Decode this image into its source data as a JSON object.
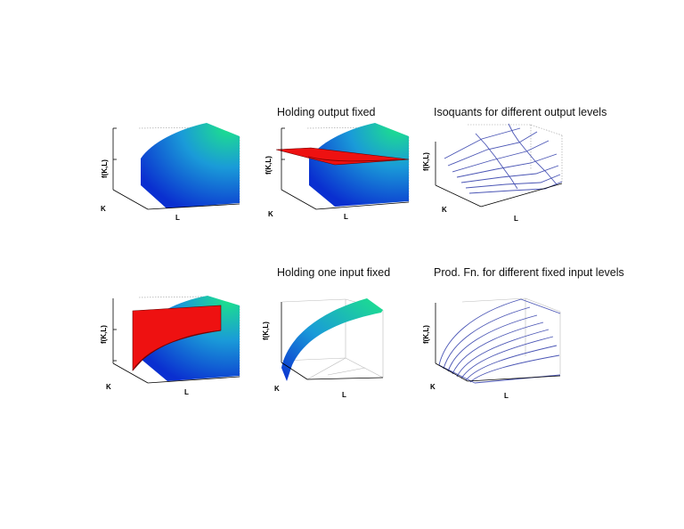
{
  "titles": {
    "p2": "Holding output fixed",
    "p3": "Isoquants for different output levels",
    "p5": "Holding one input fixed",
    "p6": "Prod. Fn. for different fixed input levels"
  },
  "axes": {
    "y": "f(K,L)",
    "k": "K",
    "l": "L"
  },
  "colors": {
    "surface_low": "#0a2fd0",
    "surface_mid": "#1a9bd8",
    "surface_high": "#1de28a",
    "plane": "#ee1111",
    "contour": "#4a55b5"
  }
}
